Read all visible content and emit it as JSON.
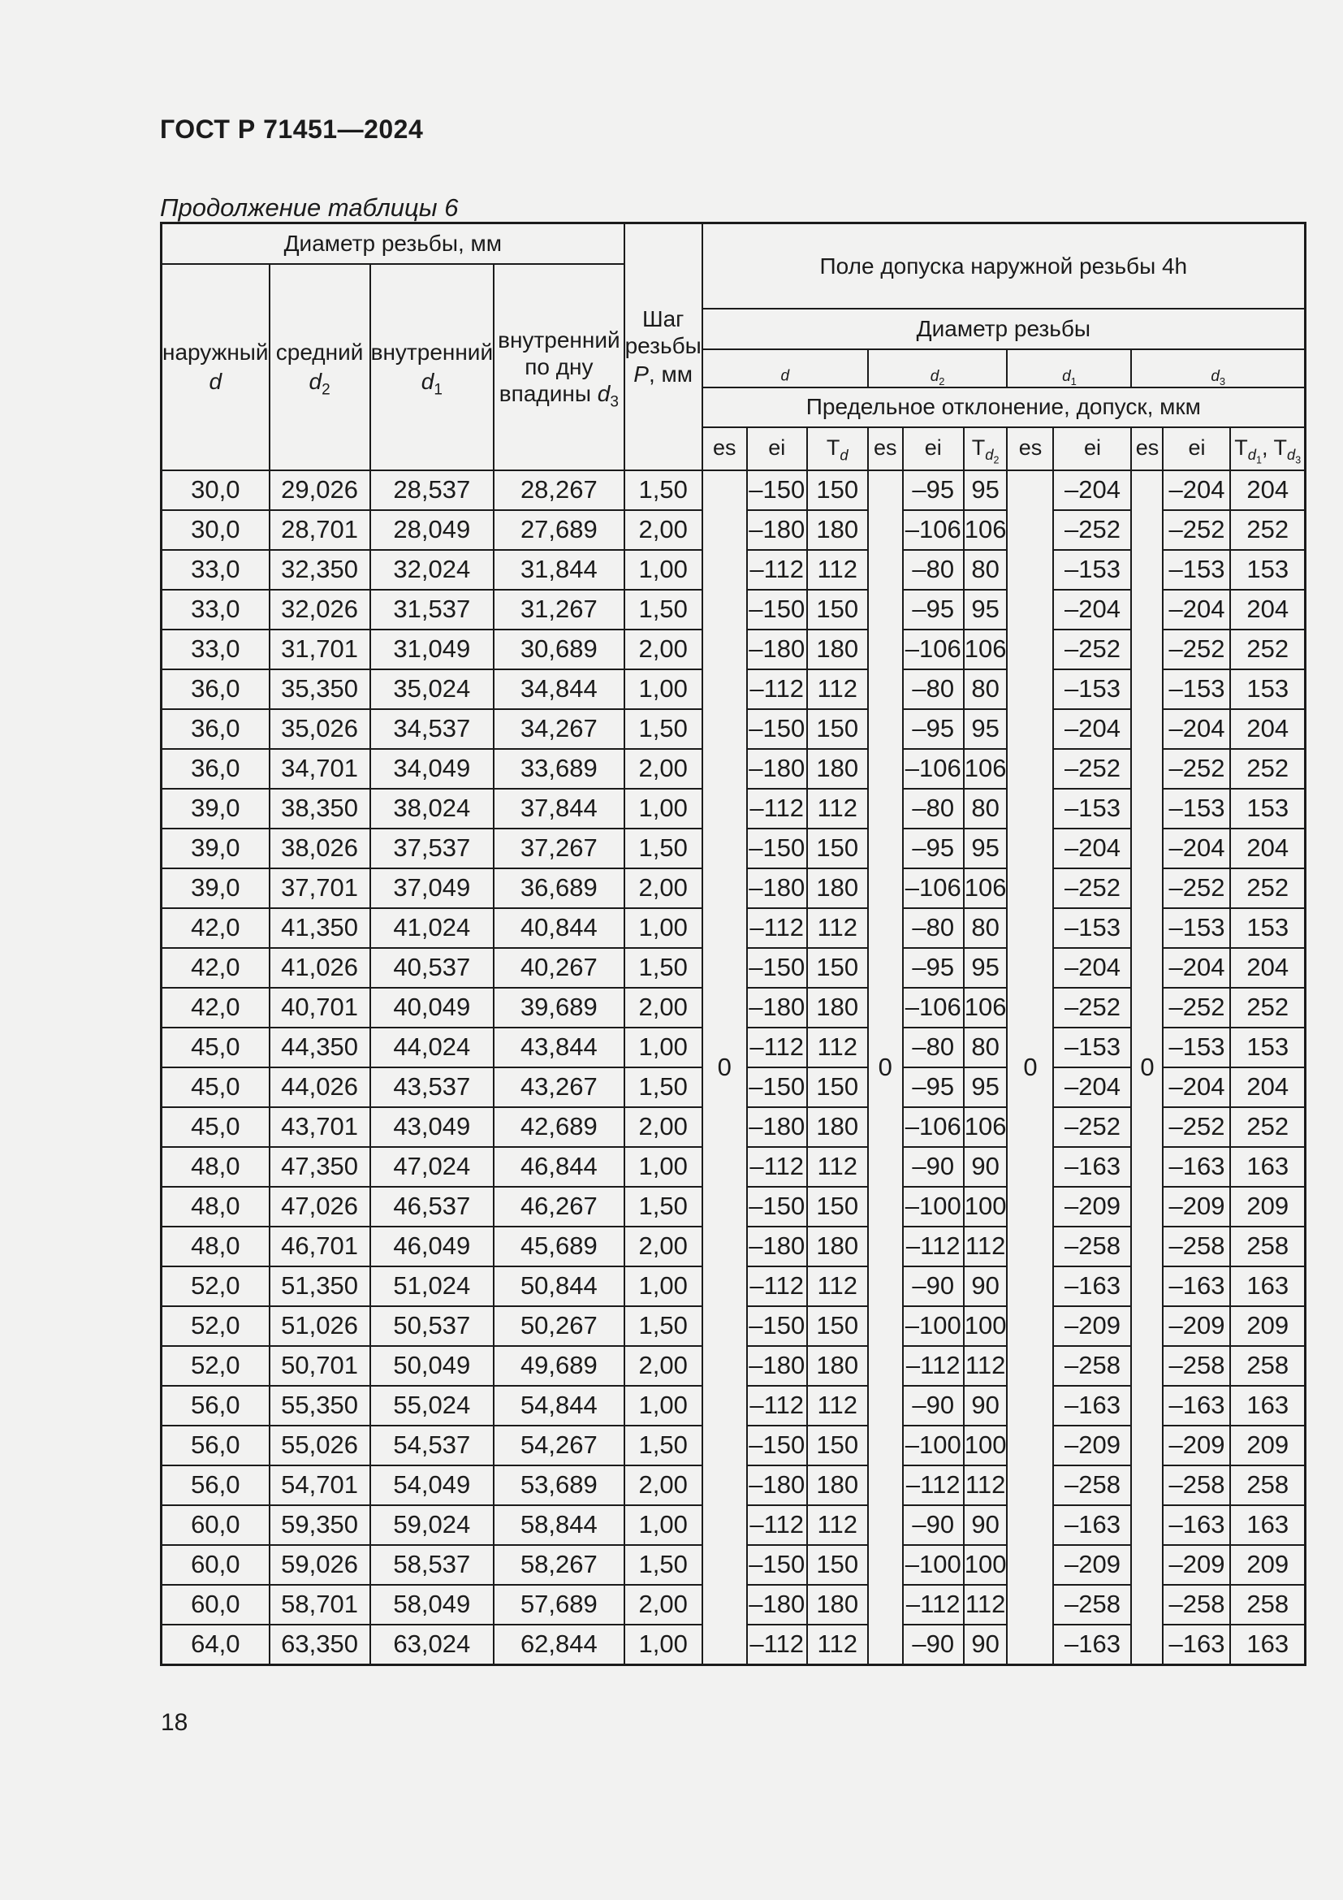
{
  "page": {
    "header_title": "ГОСТ Р 71451—2024",
    "caption": "Продолжение таблицы 6",
    "page_number": "18"
  },
  "table": {
    "header": {
      "diameter_group": "Диаметр резьбы, мм",
      "tolerance_group": "Поле допуска наружной резьбы 4h",
      "diameter_sub": "Диаметр резьбы",
      "deviation": "Предельное отклонение, допуск, мкм",
      "columns": [
        {
          "label": "наружный",
          "sym": "d",
          "idx": ""
        },
        {
          "label": "средний",
          "sym": "d",
          "idx": "2"
        },
        {
          "label": "внутренний",
          "sym": "d",
          "idx": "1"
        },
        {
          "label": "внутренний по дну впадины",
          "sym": "d",
          "idx": "3"
        }
      ],
      "pitch": {
        "line1": "Шаг",
        "line2": "резьбы",
        "sym": "P",
        "unit": ", мм"
      },
      "d_groups": [
        {
          "sym": "d",
          "idx": "",
          "span": 3
        },
        {
          "sym": "d",
          "idx": "2",
          "span": 3
        },
        {
          "sym": "d",
          "idx": "1",
          "span": 2
        },
        {
          "sym": "d",
          "idx": "3",
          "span": 3
        }
      ],
      "leaf_headers": [
        {
          "parts": [
            {
              "t": "es"
            }
          ]
        },
        {
          "parts": [
            {
              "t": "ei"
            }
          ]
        },
        {
          "parts": [
            {
              "t": "T",
              "s": "d"
            }
          ]
        },
        {
          "parts": [
            {
              "t": "es"
            }
          ]
        },
        {
          "parts": [
            {
              "t": "ei"
            }
          ]
        },
        {
          "parts": [
            {
              "t": "T",
              "s": "d",
              "n": "2"
            }
          ]
        },
        {
          "parts": [
            {
              "t": "es"
            }
          ]
        },
        {
          "parts": [
            {
              "t": "ei"
            }
          ]
        },
        {
          "parts": [
            {
              "t": "es"
            }
          ]
        },
        {
          "parts": [
            {
              "t": "ei"
            }
          ]
        },
        {
          "parts": [
            {
              "t": "T",
              "s": "d",
              "n": "1"
            },
            {
              "t": ", T",
              "s": "d",
              "n": "3"
            }
          ]
        }
      ]
    },
    "es_zero": "0",
    "rows": [
      [
        "30,0",
        "29,026",
        "28,537",
        "28,267",
        "1,50",
        "–150",
        "150",
        "–95",
        "95",
        "–204",
        "–204",
        "204"
      ],
      [
        "30,0",
        "28,701",
        "28,049",
        "27,689",
        "2,00",
        "–180",
        "180",
        "–106",
        "106",
        "–252",
        "–252",
        "252"
      ],
      [
        "33,0",
        "32,350",
        "32,024",
        "31,844",
        "1,00",
        "–112",
        "112",
        "–80",
        "80",
        "–153",
        "–153",
        "153"
      ],
      [
        "33,0",
        "32,026",
        "31,537",
        "31,267",
        "1,50",
        "–150",
        "150",
        "–95",
        "95",
        "–204",
        "–204",
        "204"
      ],
      [
        "33,0",
        "31,701",
        "31,049",
        "30,689",
        "2,00",
        "–180",
        "180",
        "–106",
        "106",
        "–252",
        "–252",
        "252"
      ],
      [
        "36,0",
        "35,350",
        "35,024",
        "34,844",
        "1,00",
        "–112",
        "112",
        "–80",
        "80",
        "–153",
        "–153",
        "153"
      ],
      [
        "36,0",
        "35,026",
        "34,537",
        "34,267",
        "1,50",
        "–150",
        "150",
        "–95",
        "95",
        "–204",
        "–204",
        "204"
      ],
      [
        "36,0",
        "34,701",
        "34,049",
        "33,689",
        "2,00",
        "–180",
        "180",
        "–106",
        "106",
        "–252",
        "–252",
        "252"
      ],
      [
        "39,0",
        "38,350",
        "38,024",
        "37,844",
        "1,00",
        "–112",
        "112",
        "–80",
        "80",
        "–153",
        "–153",
        "153"
      ],
      [
        "39,0",
        "38,026",
        "37,537",
        "37,267",
        "1,50",
        "–150",
        "150",
        "–95",
        "95",
        "–204",
        "–204",
        "204"
      ],
      [
        "39,0",
        "37,701",
        "37,049",
        "36,689",
        "2,00",
        "–180",
        "180",
        "–106",
        "106",
        "–252",
        "–252",
        "252"
      ],
      [
        "42,0",
        "41,350",
        "41,024",
        "40,844",
        "1,00",
        "–112",
        "112",
        "–80",
        "80",
        "–153",
        "–153",
        "153"
      ],
      [
        "42,0",
        "41,026",
        "40,537",
        "40,267",
        "1,50",
        "–150",
        "150",
        "–95",
        "95",
        "–204",
        "–204",
        "204"
      ],
      [
        "42,0",
        "40,701",
        "40,049",
        "39,689",
        "2,00",
        "–180",
        "180",
        "–106",
        "106",
        "–252",
        "–252",
        "252"
      ],
      [
        "45,0",
        "44,350",
        "44,024",
        "43,844",
        "1,00",
        "–112",
        "112",
        "–80",
        "80",
        "–153",
        "–153",
        "153"
      ],
      [
        "45,0",
        "44,026",
        "43,537",
        "43,267",
        "1,50",
        "–150",
        "150",
        "–95",
        "95",
        "–204",
        "–204",
        "204"
      ],
      [
        "45,0",
        "43,701",
        "43,049",
        "42,689",
        "2,00",
        "–180",
        "180",
        "–106",
        "106",
        "–252",
        "–252",
        "252"
      ],
      [
        "48,0",
        "47,350",
        "47,024",
        "46,844",
        "1,00",
        "–112",
        "112",
        "–90",
        "90",
        "–163",
        "–163",
        "163"
      ],
      [
        "48,0",
        "47,026",
        "46,537",
        "46,267",
        "1,50",
        "–150",
        "150",
        "–100",
        "100",
        "–209",
        "–209",
        "209"
      ],
      [
        "48,0",
        "46,701",
        "46,049",
        "45,689",
        "2,00",
        "–180",
        "180",
        "–112",
        "112",
        "–258",
        "–258",
        "258"
      ],
      [
        "52,0",
        "51,350",
        "51,024",
        "50,844",
        "1,00",
        "–112",
        "112",
        "–90",
        "90",
        "–163",
        "–163",
        "163"
      ],
      [
        "52,0",
        "51,026",
        "50,537",
        "50,267",
        "1,50",
        "–150",
        "150",
        "–100",
        "100",
        "–209",
        "–209",
        "209"
      ],
      [
        "52,0",
        "50,701",
        "50,049",
        "49,689",
        "2,00",
        "–180",
        "180",
        "–112",
        "112",
        "–258",
        "–258",
        "258"
      ],
      [
        "56,0",
        "55,350",
        "55,024",
        "54,844",
        "1,00",
        "–112",
        "112",
        "–90",
        "90",
        "–163",
        "–163",
        "163"
      ],
      [
        "56,0",
        "55,026",
        "54,537",
        "54,267",
        "1,50",
        "–150",
        "150",
        "–100",
        "100",
        "–209",
        "–209",
        "209"
      ],
      [
        "56,0",
        "54,701",
        "54,049",
        "53,689",
        "2,00",
        "–180",
        "180",
        "–112",
        "112",
        "–258",
        "–258",
        "258"
      ],
      [
        "60,0",
        "59,350",
        "59,024",
        "58,844",
        "1,00",
        "–112",
        "112",
        "–90",
        "90",
        "–163",
        "–163",
        "163"
      ],
      [
        "60,0",
        "59,026",
        "58,537",
        "58,267",
        "1,50",
        "–150",
        "150",
        "–100",
        "100",
        "–209",
        "–209",
        "209"
      ],
      [
        "60,0",
        "58,701",
        "58,049",
        "57,689",
        "2,00",
        "–180",
        "180",
        "–112",
        "112",
        "–258",
        "–258",
        "258"
      ],
      [
        "64,0",
        "63,350",
        "63,024",
        "62,844",
        "1,00",
        "–112",
        "112",
        "–90",
        "90",
        "–163",
        "–163",
        "163"
      ]
    ]
  }
}
